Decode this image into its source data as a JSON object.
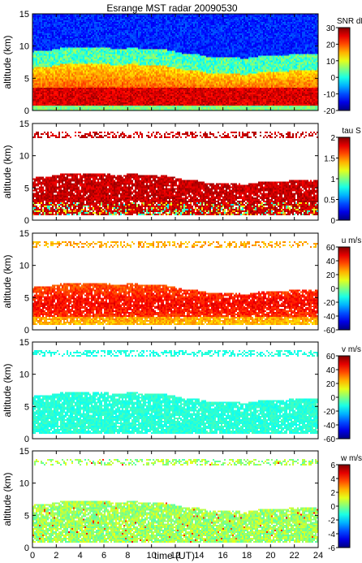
{
  "title": "Esrange MST radar 20090530",
  "xlabel": "time (UT)",
  "chart_data": [
    {
      "type": "heatmap",
      "id": "snr",
      "ylabel": "altitude (km)",
      "colorbar_label": "SNR dB",
      "clim": [
        -20,
        30
      ],
      "colorbar_ticks": [
        -20,
        -10,
        0,
        10,
        20,
        30
      ],
      "xlim": [
        0,
        24
      ],
      "ylim": [
        0,
        15
      ],
      "x_ticks": [
        0,
        2,
        4,
        6,
        8,
        10,
        12,
        14,
        16,
        18,
        20,
        22,
        24
      ],
      "y_ticks": [
        0,
        5,
        10,
        15
      ]
    },
    {
      "type": "heatmap",
      "id": "tau",
      "ylabel": "altitude (km)",
      "colorbar_label": "tau S",
      "clim": [
        0,
        2
      ],
      "colorbar_ticks": [
        0,
        0.5,
        1,
        1.5,
        2
      ],
      "xlim": [
        0,
        24
      ],
      "ylim": [
        0,
        15
      ],
      "x_ticks": [
        0,
        2,
        4,
        6,
        8,
        10,
        12,
        14,
        16,
        18,
        20,
        22,
        24
      ],
      "y_ticks": [
        0,
        5,
        10,
        15
      ]
    },
    {
      "type": "heatmap",
      "id": "u",
      "ylabel": "altitude (km)",
      "colorbar_label": "u m/s",
      "clim": [
        -60,
        60
      ],
      "colorbar_ticks": [
        -60,
        -40,
        -20,
        0,
        20,
        40,
        60
      ],
      "xlim": [
        0,
        24
      ],
      "ylim": [
        0,
        15
      ],
      "x_ticks": [
        0,
        2,
        4,
        6,
        8,
        10,
        12,
        14,
        16,
        18,
        20,
        22,
        24
      ],
      "y_ticks": [
        0,
        5,
        10,
        15
      ]
    },
    {
      "type": "heatmap",
      "id": "v",
      "ylabel": "altitude (km)",
      "colorbar_label": "v m/s",
      "clim": [
        -60,
        60
      ],
      "colorbar_ticks": [
        -60,
        -40,
        -20,
        0,
        20,
        40,
        60
      ],
      "xlim": [
        0,
        24
      ],
      "ylim": [
        0,
        15
      ],
      "x_ticks": [
        0,
        2,
        4,
        6,
        8,
        10,
        12,
        14,
        16,
        18,
        20,
        22,
        24
      ],
      "y_ticks": [
        0,
        5,
        10,
        15
      ]
    },
    {
      "type": "heatmap",
      "id": "w",
      "ylabel": "altitude (km)",
      "colorbar_label": "w m/s",
      "clim": [
        -6,
        6
      ],
      "colorbar_ticks": [
        -6,
        -4,
        -2,
        0,
        2,
        4,
        6
      ],
      "xlim": [
        0,
        24
      ],
      "ylim": [
        0,
        15
      ],
      "x_ticks": [
        0,
        2,
        4,
        6,
        8,
        10,
        12,
        14,
        16,
        18,
        20,
        22,
        24
      ],
      "y_ticks": [
        0,
        5,
        10,
        15
      ]
    }
  ]
}
